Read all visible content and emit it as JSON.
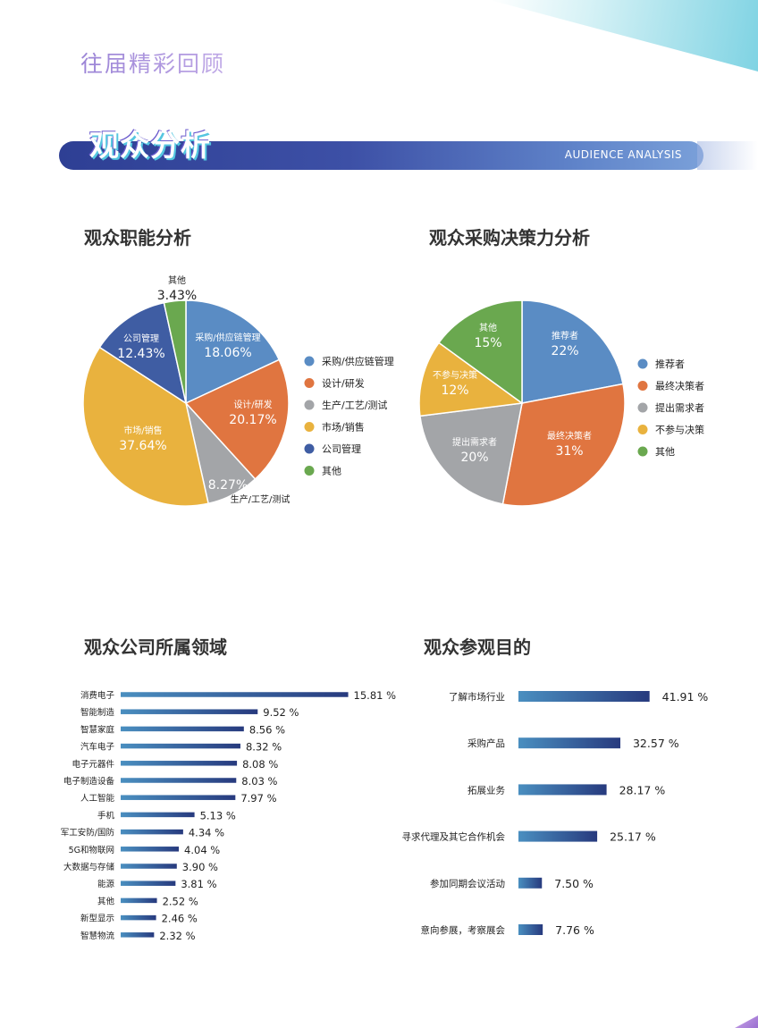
{
  "header": {
    "title": "往届精彩回顾"
  },
  "banner": {
    "title": "观众分析",
    "subtitle_en": "AUDIENCE ANALYSIS"
  },
  "colors": {
    "blue": "#5a8cc4",
    "orange": "#e07540",
    "gray": "#a3a5a8",
    "yellow": "#e9b23e",
    "navy": "#3f5da3",
    "green": "#6aa84f",
    "bar_start": "#4a8fc0",
    "bar_end": "#273a7e"
  },
  "chart_data": [
    {
      "type": "pie",
      "title": "观众职能分析",
      "slices": [
        {
          "label": "采购/供应链管理",
          "value": 18.06,
          "display": "18.06%",
          "color": "#5a8cc4"
        },
        {
          "label": "设计/研发",
          "value": 20.17,
          "display": "20.17%",
          "color": "#e07540"
        },
        {
          "label": "生产/工艺/测试",
          "value": 8.27,
          "display": "8.27%",
          "color": "#a3a5a8"
        },
        {
          "label": "市场/销售",
          "value": 37.64,
          "display": "37.64%",
          "color": "#e9b23e"
        },
        {
          "label": "公司管理",
          "value": 12.43,
          "display": "12.43%",
          "color": "#3f5da3"
        },
        {
          "label": "其他",
          "value": 3.43,
          "display": "3.43%",
          "color": "#6aa84f"
        }
      ],
      "legend": [
        "采购/供应链管理",
        "设计/研发",
        "生产/工艺/测试",
        "市场/销售",
        "公司管理",
        "其他"
      ]
    },
    {
      "type": "pie",
      "title": "观众采购决策力分析",
      "slices": [
        {
          "label": "推荐者",
          "value": 22,
          "display": "22%",
          "color": "#5a8cc4"
        },
        {
          "label": "最终决策者",
          "value": 31,
          "display": "31%",
          "color": "#e07540"
        },
        {
          "label": "提出需求者",
          "value": 20,
          "display": "20%",
          "color": "#a3a5a8"
        },
        {
          "label": "不参与决策",
          "value": 12,
          "display": "12%",
          "color": "#e9b23e"
        },
        {
          "label": "其他",
          "value": 15,
          "display": "15%",
          "color": "#6aa84f"
        }
      ],
      "legend": [
        "推荐者",
        "最终决策者",
        "提出需求者",
        "不参与决策",
        "其他"
      ]
    },
    {
      "type": "bar",
      "title": "观众公司所属领域",
      "categories": [
        "消费电子",
        "智能制造",
        "智慧家庭",
        "汽车电子",
        "电子元器件",
        "电子制造设备",
        "人工智能",
        "手机",
        "军工安防/国防",
        "5G和物联网",
        "大数据与存储",
        "能源",
        "其他",
        "新型显示",
        "智慧物流"
      ],
      "values": [
        15.81,
        9.52,
        8.56,
        8.32,
        8.08,
        8.03,
        7.97,
        5.13,
        4.34,
        4.04,
        3.9,
        3.81,
        2.52,
        2.46,
        2.32
      ],
      "labels": [
        "15.81 %",
        "9.52 %",
        "8.56 %",
        "8.32 %",
        "8.08 %",
        "8.03 %",
        "7.97 %",
        "5.13 %",
        "4.34 %",
        "4.04 %",
        "3.90 %",
        "3.81 %",
        "2.52 %",
        "2.46 %",
        "2.32 %"
      ],
      "orientation": "horizontal"
    },
    {
      "type": "bar",
      "title": "观众参观目的",
      "categories": [
        "了解市场行业",
        "采购产品",
        "拓展业务",
        "寻求代理及其它合作机会",
        "参加同期会议活动",
        "意向参展，考察展会"
      ],
      "values": [
        41.91,
        32.57,
        28.17,
        25.17,
        7.5,
        7.76
      ],
      "labels": [
        "41.91 %",
        "32.57 %",
        "28.17 %",
        "25.17 %",
        "7.50 %",
        "7.76 %"
      ],
      "orientation": "horizontal"
    }
  ]
}
